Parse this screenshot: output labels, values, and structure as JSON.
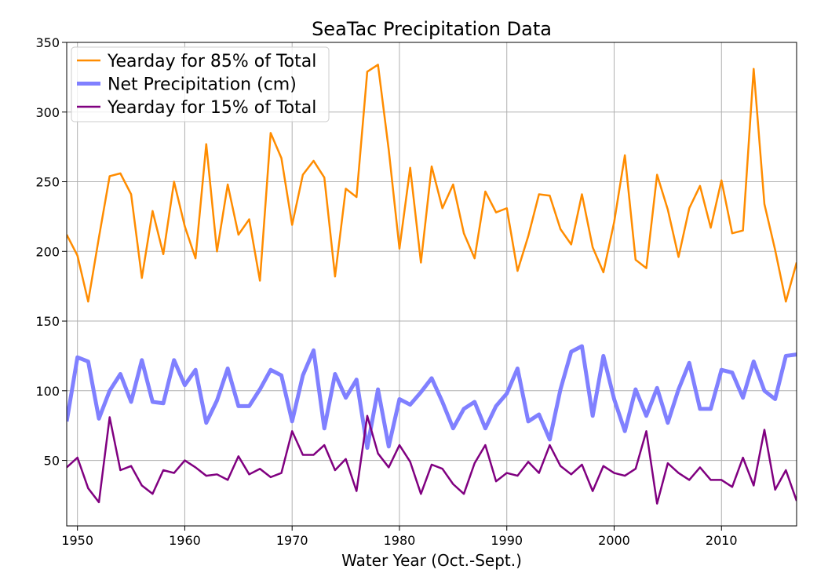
{
  "chart_data": {
    "type": "line",
    "title": "SeaTac Precipitation Data",
    "xlabel": "Water Year (Oct.-Sept.)",
    "ylabel": "",
    "xlim": [
      1949,
      2017
    ],
    "ylim": [
      3,
      350
    ],
    "xticks": [
      1950,
      1960,
      1970,
      1980,
      1990,
      2000,
      2010
    ],
    "yticks": [
      50,
      100,
      150,
      200,
      250,
      300,
      350
    ],
    "grid": true,
    "legend_position": "top-left",
    "x": [
      1949,
      1950,
      1951,
      1952,
      1953,
      1954,
      1955,
      1956,
      1957,
      1958,
      1959,
      1960,
      1961,
      1962,
      1963,
      1964,
      1965,
      1966,
      1967,
      1968,
      1969,
      1970,
      1971,
      1972,
      1973,
      1974,
      1975,
      1976,
      1977,
      1978,
      1979,
      1980,
      1981,
      1982,
      1983,
      1984,
      1985,
      1986,
      1987,
      1988,
      1989,
      1990,
      1991,
      1992,
      1993,
      1994,
      1995,
      1996,
      1997,
      1998,
      1999,
      2000,
      2001,
      2002,
      2003,
      2004,
      2005,
      2006,
      2007,
      2008,
      2009,
      2010,
      2011,
      2012,
      2013,
      2014,
      2015,
      2016,
      2017
    ],
    "series": [
      {
        "name": "Yearday for 85% of Total",
        "color": "#ff8c00",
        "width": 2.5,
        "values": [
          212,
          197,
          164,
          210,
          254,
          256,
          241,
          181,
          229,
          198,
          250,
          218,
          195,
          277,
          200,
          248,
          212,
          223,
          179,
          285,
          267,
          219,
          255,
          265,
          253,
          182,
          245,
          239,
          329,
          334,
          273,
          202,
          260,
          192,
          261,
          231,
          248,
          213,
          195,
          243,
          228,
          231,
          186,
          211,
          241,
          240,
          216,
          205,
          241,
          203,
          185,
          221,
          269,
          194,
          188,
          255,
          230,
          196,
          231,
          247,
          217,
          251,
          213,
          215,
          331,
          234,
          201,
          164,
          192
        ]
      },
      {
        "name": "Net Precipitation (cm)",
        "color": "#8080ff",
        "width": 5,
        "values": [
          78,
          124,
          121,
          80,
          100,
          112,
          92,
          122,
          92,
          91,
          122,
          104,
          115,
          77,
          93,
          116,
          89,
          89,
          101,
          115,
          111,
          78,
          111,
          129,
          73,
          112,
          95,
          108,
          59,
          101,
          60,
          94,
          90,
          99,
          109,
          92,
          73,
          87,
          92,
          73,
          89,
          98,
          116,
          78,
          83,
          65,
          101,
          128,
          132,
          82,
          125,
          94,
          71,
          101,
          82,
          102,
          77,
          101,
          120,
          87,
          87,
          115,
          113,
          95,
          121,
          100,
          94,
          125,
          126
        ]
      },
      {
        "name": "Yearday for 15% of Total",
        "color": "#800080",
        "width": 2.5,
        "values": [
          45,
          52,
          30,
          20,
          81,
          43,
          46,
          32,
          26,
          43,
          41,
          50,
          45,
          39,
          40,
          36,
          53,
          40,
          44,
          38,
          41,
          71,
          54,
          54,
          61,
          43,
          51,
          28,
          82,
          55,
          45,
          61,
          49,
          26,
          47,
          44,
          33,
          26,
          48,
          61,
          35,
          41,
          39,
          49,
          41,
          61,
          46,
          40,
          47,
          28,
          46,
          41,
          39,
          44,
          71,
          19,
          48,
          41,
          36,
          45,
          36,
          36,
          31,
          52,
          32,
          72,
          29,
          43,
          21
        ]
      }
    ],
    "legend_order": [
      "Yearday for 85% of Total",
      "Net Precipitation (cm)",
      "Yearday for 15% of Total"
    ]
  }
}
